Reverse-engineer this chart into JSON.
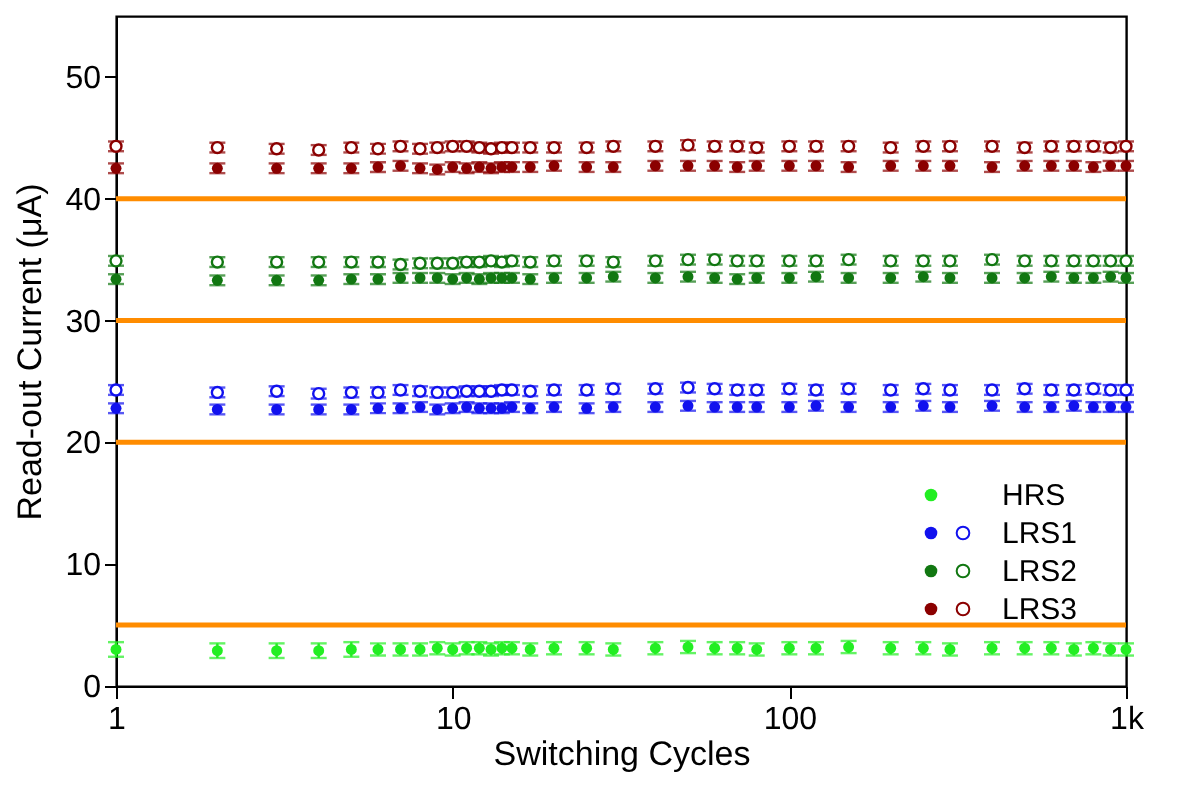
{
  "chart_data": {
    "type": "scatter",
    "xlabel": "Switching Cycles",
    "ylabel": "Read-out Current (μA)",
    "x": [
      1,
      2,
      3,
      4,
      5,
      6,
      7,
      8,
      9,
      10,
      11,
      12,
      13,
      14,
      15,
      17,
      20,
      25,
      30,
      40,
      50,
      60,
      70,
      80,
      100,
      120,
      150,
      200,
      250,
      300,
      400,
      500,
      600,
      700,
      800,
      900,
      1000
    ],
    "series": [
      {
        "name": "HRS",
        "color": "#22ee22",
        "marker": "circle",
        "values": [
          3.0,
          2.9,
          2.9,
          2.9,
          3.0,
          3.0,
          3.0,
          3.0,
          3.1,
          3.0,
          3.1,
          3.1,
          3.0,
          3.1,
          3.1,
          3.0,
          3.1,
          3.1,
          3.0,
          3.1,
          3.2,
          3.1,
          3.1,
          3.0,
          3.1,
          3.1,
          3.2,
          3.1,
          3.1,
          3.0,
          3.1,
          3.1,
          3.1,
          3.0,
          3.1,
          3.0,
          3.0
        ],
        "errors": [
          0.6,
          0.6,
          0.6,
          0.6,
          0.6,
          0.5,
          0.5,
          0.5,
          0.5,
          0.5,
          0.5,
          0.5,
          0.5,
          0.5,
          0.5,
          0.5,
          0.5,
          0.5,
          0.5,
          0.5,
          0.5,
          0.5,
          0.5,
          0.5,
          0.5,
          0.5,
          0.5,
          0.5,
          0.5,
          0.5,
          0.5,
          0.5,
          0.5,
          0.5,
          0.5,
          0.5,
          0.5
        ]
      },
      {
        "name": "LRS1",
        "color": "#1111ee",
        "marker": "circle",
        "values": [
          22.8,
          22.7,
          22.7,
          22.7,
          22.7,
          22.8,
          22.8,
          22.9,
          22.7,
          22.8,
          22.9,
          22.8,
          22.8,
          22.8,
          22.9,
          22.8,
          22.9,
          22.8,
          22.9,
          22.9,
          23.0,
          22.9,
          22.9,
          22.9,
          22.9,
          23.0,
          22.9,
          22.9,
          23.0,
          22.9,
          23.0,
          22.9,
          22.9,
          23.0,
          22.9,
          22.9,
          22.9
        ],
        "errors": [
          0.4,
          0.4,
          0.4,
          0.4,
          0.4,
          0.4,
          0.4,
          0.4,
          0.4,
          0.4,
          0.4,
          0.4,
          0.4,
          0.4,
          0.4,
          0.4,
          0.4,
          0.4,
          0.4,
          0.4,
          0.4,
          0.4,
          0.4,
          0.4,
          0.4,
          0.4,
          0.4,
          0.4,
          0.4,
          0.4,
          0.4,
          0.4,
          0.4,
          0.4,
          0.4,
          0.4,
          0.4
        ]
      },
      {
        "color": "#1111ee",
        "marker": "circle-open",
        "values": [
          24.3,
          24.1,
          24.2,
          24.0,
          24.1,
          24.1,
          24.3,
          24.2,
          24.1,
          24.1,
          24.2,
          24.2,
          24.2,
          24.3,
          24.3,
          24.2,
          24.3,
          24.3,
          24.4,
          24.4,
          24.5,
          24.4,
          24.3,
          24.3,
          24.4,
          24.3,
          24.4,
          24.3,
          24.4,
          24.3,
          24.3,
          24.4,
          24.3,
          24.3,
          24.4,
          24.3,
          24.3
        ],
        "errors": [
          0.4,
          0.4,
          0.4,
          0.4,
          0.4,
          0.4,
          0.4,
          0.4,
          0.4,
          0.4,
          0.4,
          0.4,
          0.4,
          0.4,
          0.4,
          0.4,
          0.4,
          0.4,
          0.4,
          0.4,
          0.4,
          0.4,
          0.4,
          0.4,
          0.4,
          0.4,
          0.4,
          0.4,
          0.4,
          0.4,
          0.4,
          0.4,
          0.4,
          0.4,
          0.4,
          0.4,
          0.4
        ]
      },
      {
        "name": "LRS2",
        "color": "#117711",
        "marker": "circle",
        "values": [
          33.4,
          33.3,
          33.3,
          33.3,
          33.4,
          33.4,
          33.5,
          33.5,
          33.5,
          33.4,
          33.5,
          33.4,
          33.5,
          33.5,
          33.5,
          33.4,
          33.5,
          33.5,
          33.6,
          33.5,
          33.6,
          33.5,
          33.4,
          33.5,
          33.5,
          33.6,
          33.5,
          33.5,
          33.6,
          33.5,
          33.5,
          33.5,
          33.6,
          33.5,
          33.5,
          33.6,
          33.5
        ],
        "errors": [
          0.4,
          0.4,
          0.4,
          0.4,
          0.4,
          0.4,
          0.4,
          0.4,
          0.4,
          0.4,
          0.4,
          0.4,
          0.4,
          0.4,
          0.4,
          0.4,
          0.4,
          0.4,
          0.4,
          0.4,
          0.4,
          0.4,
          0.4,
          0.4,
          0.4,
          0.4,
          0.4,
          0.4,
          0.4,
          0.4,
          0.4,
          0.4,
          0.4,
          0.4,
          0.4,
          0.4,
          0.4
        ]
      },
      {
        "color": "#117711",
        "marker": "circle-open",
        "values": [
          34.9,
          34.8,
          34.8,
          34.8,
          34.8,
          34.8,
          34.6,
          34.7,
          34.7,
          34.7,
          34.8,
          34.8,
          34.9,
          34.8,
          34.9,
          34.8,
          34.9,
          34.9,
          34.8,
          34.9,
          35.0,
          35.0,
          34.9,
          34.9,
          34.9,
          34.9,
          35.0,
          34.9,
          34.9,
          34.9,
          35.0,
          34.9,
          34.9,
          34.9,
          34.9,
          34.9,
          34.9
        ],
        "errors": [
          0.4,
          0.4,
          0.4,
          0.4,
          0.4,
          0.4,
          0.4,
          0.4,
          0.4,
          0.4,
          0.4,
          0.4,
          0.4,
          0.4,
          0.4,
          0.4,
          0.4,
          0.4,
          0.4,
          0.4,
          0.4,
          0.4,
          0.4,
          0.4,
          0.4,
          0.4,
          0.4,
          0.4,
          0.4,
          0.4,
          0.4,
          0.4,
          0.4,
          0.4,
          0.4,
          0.4,
          0.4
        ]
      },
      {
        "name": "LRS3",
        "color": "#8b0000",
        "marker": "circle",
        "values": [
          42.5,
          42.5,
          42.5,
          42.5,
          42.5,
          42.6,
          42.7,
          42.5,
          42.4,
          42.6,
          42.5,
          42.6,
          42.5,
          42.6,
          42.6,
          42.6,
          42.7,
          42.6,
          42.6,
          42.7,
          42.7,
          42.7,
          42.6,
          42.7,
          42.7,
          42.7,
          42.6,
          42.7,
          42.7,
          42.7,
          42.6,
          42.7,
          42.7,
          42.7,
          42.6,
          42.7,
          42.7
        ],
        "errors": [
          0.4,
          0.4,
          0.4,
          0.4,
          0.4,
          0.4,
          0.4,
          0.4,
          0.4,
          0.4,
          0.4,
          0.4,
          0.4,
          0.4,
          0.4,
          0.4,
          0.4,
          0.4,
          0.4,
          0.4,
          0.4,
          0.4,
          0.4,
          0.4,
          0.4,
          0.4,
          0.4,
          0.4,
          0.4,
          0.4,
          0.4,
          0.4,
          0.4,
          0.4,
          0.4,
          0.4,
          0.4
        ]
      },
      {
        "color": "#8b0000",
        "marker": "circle-open",
        "values": [
          44.3,
          44.2,
          44.1,
          44.0,
          44.2,
          44.1,
          44.3,
          44.1,
          44.2,
          44.3,
          44.3,
          44.2,
          44.1,
          44.2,
          44.2,
          44.2,
          44.2,
          44.2,
          44.3,
          44.3,
          44.4,
          44.3,
          44.3,
          44.2,
          44.3,
          44.3,
          44.3,
          44.2,
          44.3,
          44.3,
          44.3,
          44.2,
          44.3,
          44.3,
          44.3,
          44.2,
          44.3
        ],
        "errors": [
          0.4,
          0.4,
          0.4,
          0.4,
          0.4,
          0.4,
          0.4,
          0.4,
          0.4,
          0.4,
          0.4,
          0.4,
          0.4,
          0.4,
          0.4,
          0.4,
          0.4,
          0.4,
          0.4,
          0.4,
          0.4,
          0.4,
          0.4,
          0.4,
          0.4,
          0.4,
          0.4,
          0.4,
          0.4,
          0.4,
          0.4,
          0.4,
          0.4,
          0.4,
          0.4,
          0.4,
          0.4
        ]
      }
    ],
    "ref_lines": [
      {
        "axis": "y",
        "value": 5,
        "color": "#ff8c00"
      },
      {
        "axis": "y",
        "value": 20,
        "color": "#ff8c00"
      },
      {
        "axis": "y",
        "value": 30,
        "color": "#ff8c00"
      },
      {
        "axis": "y",
        "value": 40,
        "color": "#ff8c00"
      }
    ],
    "log": "x",
    "xlim": [
      1,
      1000
    ],
    "xticks": [
      1,
      10,
      100,
      {
        "value": 1000,
        "label": "1k"
      }
    ],
    "ylim": [
      0,
      55
    ],
    "yticks": [
      0,
      10,
      20,
      30,
      40,
      50
    ],
    "grid": false,
    "legend": "bottom right"
  }
}
